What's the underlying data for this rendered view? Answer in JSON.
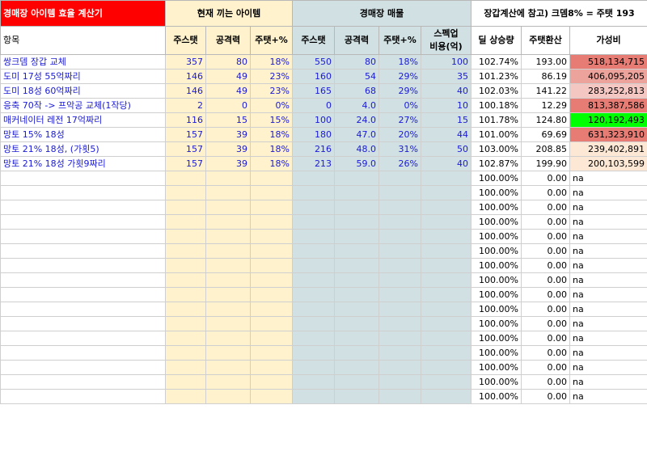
{
  "header": {
    "title": "경매장 아이템 효율 계산기",
    "current_group": "현재 끼는 아이템",
    "market_group": "경매장 매물",
    "note": "장갑계산에 참고) 크뎀8% = 주탯 193"
  },
  "columns": {
    "name": "항목",
    "cur_stat": "주스탯",
    "cur_atk": "공격력",
    "cur_pct": "주탯+%",
    "mkt_stat": "주스탯",
    "mkt_atk": "공격력",
    "mkt_pct": "주탯+%",
    "cost_line1": "스펙업",
    "cost_line2": "비용(억)",
    "dmg": "딜 상승량",
    "conv": "주탯환산",
    "value": "가성비"
  },
  "rows": [
    {
      "name": "쌍크뎀 장갑 교체",
      "cs": "357",
      "ca": "80",
      "cp": "18%",
      "ms": "550",
      "ma": "80",
      "mp": "18%",
      "cost": "100",
      "dmg": "102.74%",
      "conv": "193.00",
      "val": "518,134,715",
      "bg": "#e67c73"
    },
    {
      "name": "도미 17성 55억짜리",
      "cs": "146",
      "ca": "49",
      "cp": "23%",
      "ms": "160",
      "ma": "54",
      "mp": "29%",
      "cost": "35",
      "dmg": "101.23%",
      "conv": "86.19",
      "val": "406,095,205",
      "bg": "#eba39b"
    },
    {
      "name": "도미 18성 60억짜리",
      "cs": "146",
      "ca": "49",
      "cp": "23%",
      "ms": "165",
      "ma": "68",
      "mp": "29%",
      "cost": "40",
      "dmg": "102.03%",
      "conv": "141.22",
      "val": "283,252,813",
      "bg": "#f4c7c3"
    },
    {
      "name": "응축 70작 -> 프악공 교체(1작당)",
      "cs": "2",
      "ca": "0",
      "cp": "0%",
      "ms": "0",
      "ma": "4.0",
      "mp": "0%",
      "cost": "10",
      "dmg": "100.18%",
      "conv": "12.29",
      "val": "813,387,586",
      "bg": "#e67c73"
    },
    {
      "name": "매커네이터 레전 17억짜리",
      "cs": "116",
      "ca": "15",
      "cp": "15%",
      "ms": "100",
      "ma": "24.0",
      "mp": "27%",
      "cost": "15",
      "dmg": "101.78%",
      "conv": "124.80",
      "val": "120,192,493",
      "bg": "#00ff00"
    },
    {
      "name": "망토 15% 18성",
      "cs": "157",
      "ca": "39",
      "cp": "18%",
      "ms": "180",
      "ma": "47.0",
      "mp": "20%",
      "cost": "44",
      "dmg": "101.00%",
      "conv": "69.69",
      "val": "631,323,910",
      "bg": "#e67c73"
    },
    {
      "name": "망토 21% 18성, (가횟5)",
      "cs": "157",
      "ca": "39",
      "cp": "18%",
      "ms": "216",
      "ma": "48.0",
      "mp": "31%",
      "cost": "50",
      "dmg": "103.00%",
      "conv": "208.85",
      "val": "239,402,891",
      "bg": "#fce8d5"
    },
    {
      "name": "망토 21% 18성 가횟9짜리",
      "cs": "157",
      "ca": "39",
      "cp": "18%",
      "ms": "213",
      "ma": "59.0",
      "mp": "26%",
      "cost": "40",
      "dmg": "102.87%",
      "conv": "199.90",
      "val": "200,103,599",
      "bg": "#fce8d5"
    }
  ],
  "empty_row": {
    "dmg": "100.00%",
    "conv": "0.00",
    "val": "na"
  },
  "empty_count": 16,
  "colors": {
    "title": "#ff0000",
    "current": "#fff2cc",
    "market": "#d0e0e3",
    "best": "#00ff00"
  }
}
